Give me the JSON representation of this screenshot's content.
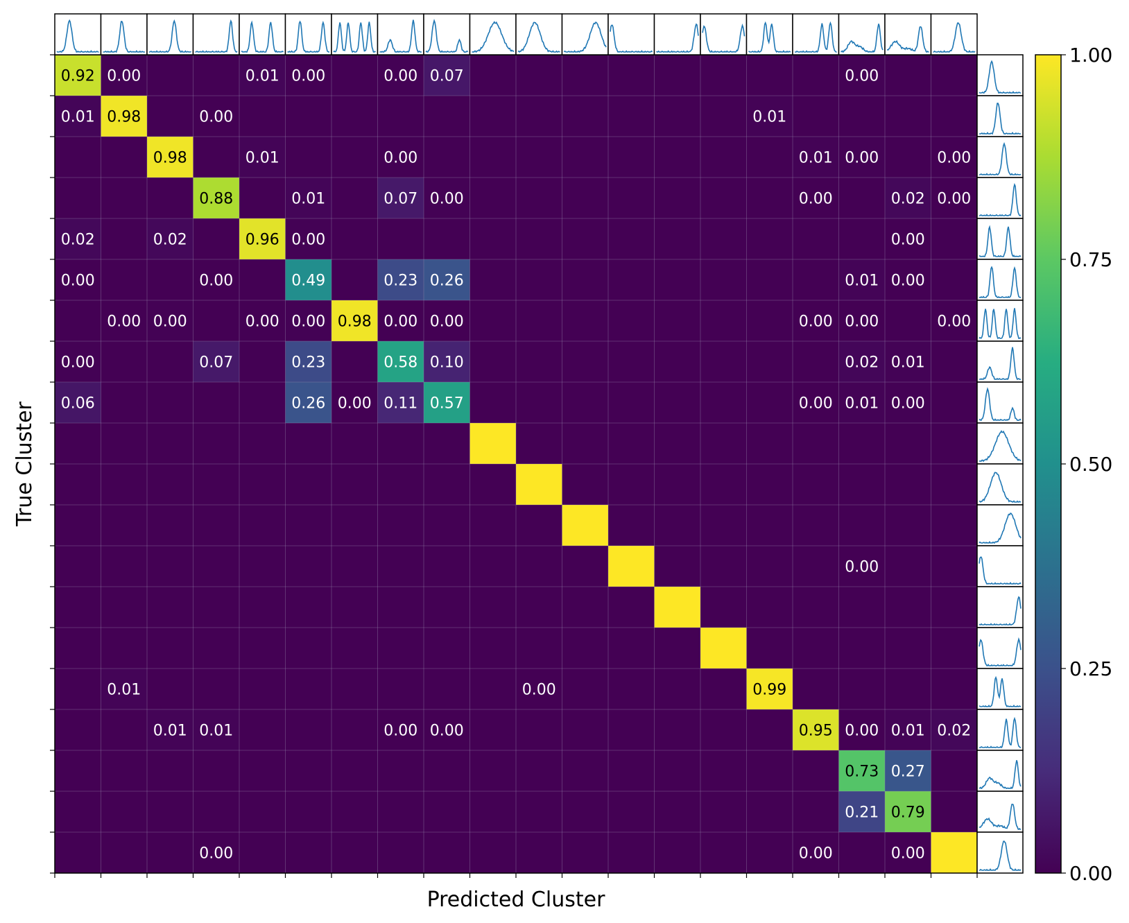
{
  "chart_data": {
    "type": "heatmap",
    "xlabel": "Predicted Cluster",
    "ylabel": "True Cluster",
    "n": 20,
    "colormap": "viridis",
    "colorbar": {
      "min": 0.0,
      "max": 1.0,
      "ticks": [
        "0.00",
        "0.25",
        "0.50",
        "0.75",
        "1.00"
      ]
    },
    "colors": {
      "line": "#1f77b4",
      "grid": "#9a8fb0",
      "dark_text": "#000000",
      "light_text": "#ffffff"
    },
    "matrix": [
      [
        0.92,
        0.003,
        0.0005,
        0.0005,
        0.012,
        0.001,
        0,
        0.003,
        0.065,
        0,
        0,
        0,
        0,
        0,
        0,
        0,
        0,
        0.002,
        0,
        0
      ],
      [
        0.012,
        0.98,
        0,
        0.001,
        0,
        0,
        0,
        0,
        0,
        0,
        0,
        0,
        0,
        0,
        0,
        0.007,
        0,
        0,
        0,
        0
      ],
      [
        0,
        0,
        0.98,
        0,
        0.01,
        0,
        0,
        0.001,
        0,
        0,
        0,
        0,
        0,
        0,
        0,
        0,
        0.006,
        0.002,
        0,
        0.001
      ],
      [
        0,
        0,
        0,
        0.88,
        0,
        0.012,
        0,
        0.07,
        0.002,
        0,
        0,
        0,
        0,
        0,
        0,
        0,
        0.001,
        0,
        0.02,
        0.001
      ],
      [
        0.02,
        0,
        0.02,
        0,
        0.96,
        0.002,
        0,
        0,
        0,
        0,
        0,
        0,
        0,
        0,
        0,
        0,
        0,
        0,
        0.001,
        0
      ],
      [
        0.001,
        0,
        0,
        0.001,
        0,
        0.49,
        0,
        0.23,
        0.26,
        0,
        0,
        0,
        0,
        0,
        0,
        0,
        0,
        0.01,
        0.001,
        0
      ],
      [
        0,
        0.001,
        0.002,
        0,
        0.001,
        0.002,
        0.98,
        0.001,
        0.001,
        0,
        0,
        0,
        0,
        0,
        0,
        0,
        0.001,
        0.001,
        0,
        0.001
      ],
      [
        0.002,
        0,
        0,
        0.07,
        0,
        0.23,
        0,
        0.58,
        0.1,
        0,
        0,
        0,
        0,
        0,
        0,
        0,
        0,
        0.015,
        0.007,
        0
      ],
      [
        0.06,
        0,
        0,
        0,
        0,
        0.26,
        0.001,
        0.11,
        0.57,
        0,
        0,
        0,
        0,
        0,
        0,
        0,
        0.001,
        0.007,
        0.002,
        0
      ],
      [
        0,
        0,
        0,
        0,
        0,
        0,
        0,
        0,
        0,
        1,
        0,
        0,
        0,
        0,
        0,
        0,
        0,
        0,
        0,
        0
      ],
      [
        0,
        0,
        0,
        0,
        0,
        0,
        0,
        0,
        0,
        0,
        1,
        0,
        0,
        0,
        0,
        0,
        0,
        0,
        0,
        0
      ],
      [
        0,
        0,
        0,
        0,
        0,
        0,
        0,
        0,
        0,
        0,
        0,
        1,
        0,
        0,
        0,
        0,
        0,
        0,
        0,
        0
      ],
      [
        0,
        0,
        0,
        0,
        0,
        0,
        0,
        0,
        0,
        0,
        0,
        0,
        1,
        0,
        0,
        0,
        0,
        0.001,
        0,
        0
      ],
      [
        0,
        0,
        0,
        0,
        0,
        0,
        0,
        0,
        0,
        0,
        0,
        0,
        0,
        1,
        0,
        0,
        0,
        0,
        0,
        0
      ],
      [
        0,
        0,
        0,
        0,
        0,
        0,
        0,
        0,
        0,
        0,
        0,
        0,
        0,
        0,
        1,
        0,
        0,
        0,
        0,
        0
      ],
      [
        0,
        0.01,
        0,
        0,
        0,
        0,
        0,
        0,
        0,
        0,
        0.001,
        0,
        0,
        0,
        0,
        0.99,
        0,
        0,
        0,
        0
      ],
      [
        0,
        0,
        0.01,
        0.01,
        0,
        0,
        0,
        0.001,
        0.001,
        0,
        0,
        0,
        0,
        0,
        0,
        0,
        0.95,
        0.001,
        0.01,
        0.02
      ],
      [
        0,
        0,
        0,
        0,
        0,
        0,
        0,
        0,
        0,
        0,
        0,
        0,
        0,
        0,
        0,
        0,
        0,
        0.73,
        0.27,
        0
      ],
      [
        0,
        0,
        0,
        0,
        0,
        0,
        0,
        0,
        0,
        0,
        0,
        0,
        0,
        0,
        0,
        0,
        0,
        0.21,
        0.79,
        0
      ],
      [
        0,
        0,
        0,
        0.001,
        0,
        0,
        0,
        0,
        0,
        0,
        0,
        0,
        0,
        0,
        0,
        0,
        0.001,
        0,
        0.001,
        1
      ]
    ],
    "labels": [
      [
        "0.92",
        "0.00",
        "",
        "",
        "0.01",
        "0.00",
        "",
        "0.00",
        "0.07",
        "",
        "",
        "",
        "",
        "",
        "",
        "",
        "",
        "0.00",
        "",
        ""
      ],
      [
        "0.01",
        "0.98",
        "",
        "0.00",
        "",
        "",
        "",
        "",
        "",
        "",
        "",
        "",
        "",
        "",
        "",
        "0.01",
        "",
        "",
        "",
        ""
      ],
      [
        "",
        "",
        "0.98",
        "",
        "0.01",
        "",
        "",
        "0.00",
        "",
        "",
        "",
        "",
        "",
        "",
        "",
        "",
        "0.01",
        "0.00",
        "",
        "0.00"
      ],
      [
        "",
        "",
        "",
        "0.88",
        "",
        "0.01",
        "",
        "0.07",
        "0.00",
        "",
        "",
        "",
        "",
        "",
        "",
        "",
        "0.00",
        "",
        "0.02",
        "0.00"
      ],
      [
        "0.02",
        "",
        "0.02",
        "",
        "0.96",
        "0.00",
        "",
        "",
        "",
        "",
        "",
        "",
        "",
        "",
        "",
        "",
        "",
        "",
        "0.00",
        ""
      ],
      [
        "0.00",
        "",
        "",
        "0.00",
        "",
        "0.49",
        "",
        "0.23",
        "0.26",
        "",
        "",
        "",
        "",
        "",
        "",
        "",
        "",
        "0.01",
        "0.00",
        ""
      ],
      [
        "",
        "0.00",
        "0.00",
        "",
        "0.00",
        "0.00",
        "0.98",
        "0.00",
        "0.00",
        "",
        "",
        "",
        "",
        "",
        "",
        "",
        "0.00",
        "0.00",
        "",
        "0.00"
      ],
      [
        "0.00",
        "",
        "",
        "0.07",
        "",
        "0.23",
        "",
        "0.58",
        "0.10",
        "",
        "",
        "",
        "",
        "",
        "",
        "",
        "",
        "0.02",
        "0.01",
        ""
      ],
      [
        "0.06",
        "",
        "",
        "",
        "",
        "0.26",
        "0.00",
        "0.11",
        "0.57",
        "",
        "",
        "",
        "",
        "",
        "",
        "",
        "0.00",
        "0.01",
        "0.00",
        ""
      ],
      [
        "",
        "",
        "",
        "",
        "",
        "",
        "",
        "",
        "",
        "",
        "",
        "",
        "",
        "",
        "",
        "",
        "",
        "",
        "",
        ""
      ],
      [
        "",
        "",
        "",
        "",
        "",
        "",
        "",
        "",
        "",
        "",
        "",
        "",
        "",
        "",
        "",
        "",
        "",
        "",
        "",
        ""
      ],
      [
        "",
        "",
        "",
        "",
        "",
        "",
        "",
        "",
        "",
        "",
        "",
        "",
        "",
        "",
        "",
        "",
        "",
        "",
        "",
        ""
      ],
      [
        "",
        "",
        "",
        "",
        "",
        "",
        "",
        "",
        "",
        "",
        "",
        "",
        "",
        "",
        "",
        "",
        "",
        "0.00",
        "",
        ""
      ],
      [
        "",
        "",
        "",
        "",
        "",
        "",
        "",
        "",
        "",
        "",
        "",
        "",
        "",
        "",
        "",
        "",
        "",
        "",
        "",
        ""
      ],
      [
        "",
        "",
        "",
        "",
        "",
        "",
        "",
        "",
        "",
        "",
        "",
        "",
        "",
        "",
        "",
        "",
        "",
        "",
        "",
        ""
      ],
      [
        "",
        "0.01",
        "",
        "",
        "",
        "",
        "",
        "",
        "",
        "",
        "0.00",
        "",
        "",
        "",
        "",
        "0.99",
        "",
        "",
        "",
        ""
      ],
      [
        "",
        "",
        "0.01",
        "0.01",
        "",
        "",
        "",
        "0.00",
        "0.00",
        "",
        "",
        "",
        "",
        "",
        "",
        "",
        "0.95",
        "0.00",
        "0.01",
        "0.02"
      ],
      [
        "",
        "",
        "",
        "",
        "",
        "",
        "",
        "",
        "",
        "",
        "",
        "",
        "",
        "",
        "",
        "",
        "",
        "0.73",
        "0.27",
        ""
      ],
      [
        "",
        "",
        "",
        "",
        "",
        "",
        "",
        "",
        "",
        "",
        "",
        "",
        "",
        "",
        "",
        "",
        "",
        "0.21",
        "0.79",
        ""
      ],
      [
        "",
        "",
        "",
        "0.00",
        "",
        "",
        "",
        "",
        "",
        "",
        "",
        "",
        "",
        "",
        "",
        "",
        "0.00",
        "",
        "0.00",
        ""
      ]
    ],
    "profile_peaks": [
      [
        [
          0.3,
          0.9,
          0.06
        ]
      ],
      [
        [
          0.45,
          0.9,
          0.05
        ]
      ],
      [
        [
          0.6,
          0.9,
          0.05
        ]
      ],
      [
        [
          0.85,
          0.9,
          0.04
        ]
      ],
      [
        [
          0.25,
          0.85,
          0.04
        ],
        [
          0.7,
          0.85,
          0.04
        ]
      ],
      [
        [
          0.3,
          0.9,
          0.04
        ],
        [
          0.85,
          0.85,
          0.04
        ]
      ],
      [
        [
          0.15,
          0.85,
          0.035
        ],
        [
          0.35,
          0.85,
          0.035
        ],
        [
          0.65,
          0.85,
          0.035
        ],
        [
          0.85,
          0.85,
          0.035
        ]
      ],
      [
        [
          0.25,
          0.35,
          0.05
        ],
        [
          0.8,
          0.9,
          0.04
        ]
      ],
      [
        [
          0.2,
          0.9,
          0.05
        ],
        [
          0.8,
          0.35,
          0.04
        ]
      ],
      [
        [
          0.55,
          0.85,
          0.16
        ]
      ],
      [
        [
          0.4,
          0.85,
          0.13
        ]
      ],
      [
        [
          0.75,
          0.85,
          0.13
        ]
      ],
      [
        [
          0.04,
          0.8,
          0.05
        ]
      ],
      [
        [
          0.95,
          0.8,
          0.05
        ]
      ],
      [
        [
          0.04,
          0.75,
          0.05
        ],
        [
          0.95,
          0.75,
          0.05
        ]
      ],
      [
        [
          0.4,
          0.85,
          0.04
        ],
        [
          0.55,
          0.8,
          0.04
        ]
      ],
      [
        [
          0.65,
          0.8,
          0.04
        ],
        [
          0.85,
          0.85,
          0.04
        ]
      ],
      [
        [
          0.25,
          0.3,
          0.08
        ],
        [
          0.45,
          0.15,
          0.08
        ],
        [
          0.9,
          0.8,
          0.04
        ]
      ],
      [
        [
          0.2,
          0.3,
          0.1
        ],
        [
          0.5,
          0.1,
          0.1
        ],
        [
          0.8,
          0.75,
          0.05
        ]
      ],
      [
        [
          0.6,
          0.85,
          0.07
        ]
      ]
    ]
  }
}
